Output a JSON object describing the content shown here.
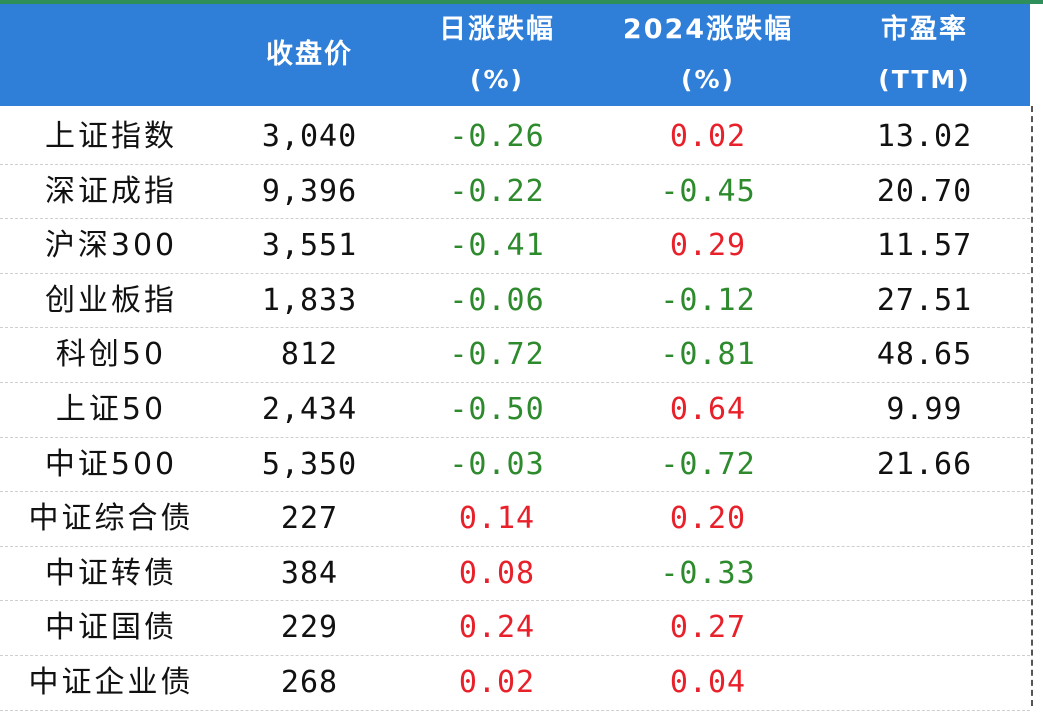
{
  "colors": {
    "header_bg": "#2f7ed8",
    "positive": "#e8202a",
    "negative": "#2d8a2d",
    "top_strip": "#2f8f5b"
  },
  "header": {
    "close": "收盘价",
    "daily_line1": "日涨跌幅",
    "daily_line2": "(%)",
    "ytd_line1": "2024涨跌幅",
    "ytd_line2": "(%)",
    "pe_line1": "市盈率",
    "pe_line2": "(TTM)"
  },
  "rows": [
    {
      "name": "上证指数",
      "close": "3,040",
      "daily": "-0.26",
      "daily_dir": "neg",
      "ytd": "0.02",
      "ytd_dir": "pos",
      "pe": "13.02"
    },
    {
      "name": "深证成指",
      "close": "9,396",
      "daily": "-0.22",
      "daily_dir": "neg",
      "ytd": "-0.45",
      "ytd_dir": "neg",
      "pe": "20.70"
    },
    {
      "name": "沪深300",
      "close": "3,551",
      "daily": "-0.41",
      "daily_dir": "neg",
      "ytd": "0.29",
      "ytd_dir": "pos",
      "pe": "11.57"
    },
    {
      "name": "创业板指",
      "close": "1,833",
      "daily": "-0.06",
      "daily_dir": "neg",
      "ytd": "-0.12",
      "ytd_dir": "neg",
      "pe": "27.51"
    },
    {
      "name": "科创50",
      "close": "812",
      "daily": "-0.72",
      "daily_dir": "neg",
      "ytd": "-0.81",
      "ytd_dir": "neg",
      "pe": "48.65"
    },
    {
      "name": "上证50",
      "close": "2,434",
      "daily": "-0.50",
      "daily_dir": "neg",
      "ytd": "0.64",
      "ytd_dir": "pos",
      "pe": "9.99"
    },
    {
      "name": "中证500",
      "close": "5,350",
      "daily": "-0.03",
      "daily_dir": "neg",
      "ytd": "-0.72",
      "ytd_dir": "neg",
      "pe": "21.66"
    },
    {
      "name": "中证综合债",
      "close": "227",
      "daily": "0.14",
      "daily_dir": "pos",
      "ytd": "0.20",
      "ytd_dir": "pos",
      "pe": ""
    },
    {
      "name": "中证转债",
      "close": "384",
      "daily": "0.08",
      "daily_dir": "pos",
      "ytd": "-0.33",
      "ytd_dir": "neg",
      "pe": ""
    },
    {
      "name": "中证国债",
      "close": "229",
      "daily": "0.24",
      "daily_dir": "pos",
      "ytd": "0.27",
      "ytd_dir": "pos",
      "pe": ""
    },
    {
      "name": "中证企业债",
      "close": "268",
      "daily": "0.02",
      "daily_dir": "pos",
      "ytd": "0.04",
      "ytd_dir": "pos",
      "pe": ""
    }
  ]
}
